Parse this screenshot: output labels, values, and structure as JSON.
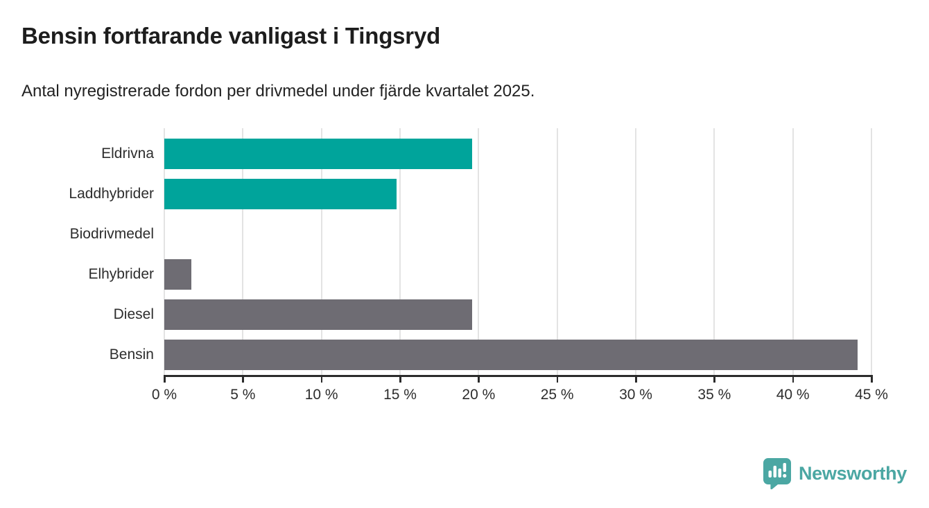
{
  "header": {
    "title": "Bensin fortfarande vanligast i Tingsryd",
    "subtitle": "Antal nyregistrerade fordon per drivmedel under fjärde kvartalet 2025."
  },
  "colors": {
    "teal": "#00a49b",
    "gray": "#6e6c73",
    "gridline": "#e3e3e3",
    "axis": "#2b2b2b",
    "text": "#2d2d2d",
    "logo_teal": "#4ba7a3"
  },
  "chart_data": {
    "type": "bar",
    "orientation": "horizontal",
    "title": "Bensin fortfarande vanligast i Tingsryd",
    "subtitle": "Antal nyregistrerade fordon per drivmedel under fjärde kvartalet 2025.",
    "categories": [
      "Eldrivna",
      "Laddhybrider",
      "Biodrivmedel",
      "Elhybrider",
      "Diesel",
      "Bensin"
    ],
    "values": [
      19.6,
      14.8,
      0,
      1.7,
      19.6,
      44.1
    ],
    "unit": "%",
    "bar_colors": [
      "teal",
      "teal",
      "teal",
      "gray",
      "gray",
      "gray"
    ],
    "xlabel": "",
    "ylabel": "",
    "xlim": [
      0,
      45
    ],
    "x_ticks": [
      "0 %",
      "5 %",
      "10 %",
      "15 %",
      "20 %",
      "25 %",
      "30 %",
      "35 %",
      "40 %",
      "45 %"
    ],
    "grid": "vertical",
    "legend": "none"
  },
  "footer": {
    "brand": "Newsworthy"
  }
}
